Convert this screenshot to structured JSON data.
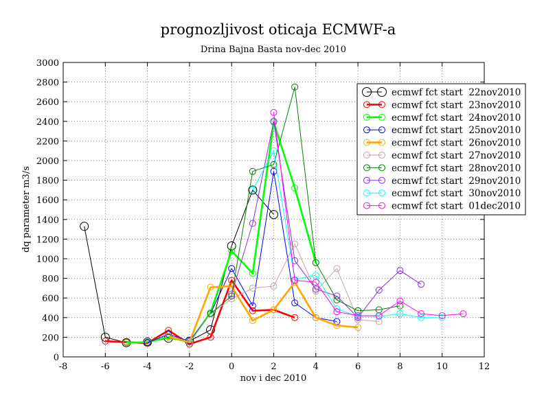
{
  "chart_data": {
    "type": "line",
    "title": "prognozljivost oticaja ECMWF-a",
    "subtitle": "Drina Bajna Basta nov-dec 2010",
    "xlabel": "nov i dec 2010",
    "ylabel": "dq parameter m3/s",
    "xlim": [
      -8,
      12
    ],
    "ylim": [
      0,
      3000
    ],
    "xticks": [
      -8,
      -6,
      -4,
      -2,
      0,
      2,
      4,
      6,
      8,
      10,
      12
    ],
    "yticks": [
      0,
      200,
      400,
      600,
      800,
      1000,
      1200,
      1400,
      1600,
      1800,
      2000,
      2200,
      2400,
      2600,
      2800,
      3000
    ],
    "grid": true,
    "legend_position": "top-right",
    "series": [
      {
        "name": "ecmwf fct start  22nov2010",
        "color": "#000000",
        "thick": false,
        "big_markers": true,
        "x": [
          -7,
          -6,
          -5,
          -4,
          -3,
          -2,
          -1,
          0,
          1,
          2
        ],
        "y": [
          1330,
          200,
          145,
          150,
          190,
          160,
          275,
          1130,
          1700,
          1450
        ]
      },
      {
        "name": "ecmwf fct start  23nov2010",
        "color": "#ff0000",
        "thick": true,
        "big_markers": false,
        "x": [
          -6,
          -5,
          -4,
          -3,
          -2,
          -1,
          0,
          1,
          2,
          3
        ],
        "y": [
          160,
          150,
          140,
          270,
          130,
          200,
          780,
          470,
          480,
          400
        ]
      },
      {
        "name": "ecmwf fct start  24nov2010",
        "color": "#00ff00",
        "thick": true,
        "big_markers": false,
        "x": [
          -5,
          -4,
          -3,
          -2,
          -1,
          0,
          1,
          2,
          3,
          4
        ],
        "y": [
          145,
          150,
          200,
          150,
          450,
          1080,
          850,
          2390,
          1720,
          960
        ]
      },
      {
        "name": "ecmwf fct start  25nov2010",
        "color": "#0000ff",
        "thick": false,
        "big_markers": false,
        "x": [
          -4,
          -3,
          -2,
          -1,
          0,
          1,
          2,
          3,
          4,
          5
        ],
        "y": [
          145,
          230,
          160,
          440,
          900,
          520,
          1890,
          550,
          400,
          360
        ]
      },
      {
        "name": "ecmwf fct start  26nov2010",
        "color": "#ffa500",
        "thick": true,
        "big_markers": false,
        "x": [
          -3,
          -2,
          -1,
          0,
          1,
          2,
          3,
          4,
          5,
          6
        ],
        "y": [
          210,
          150,
          710,
          720,
          370,
          480,
          760,
          400,
          320,
          300
        ]
      },
      {
        "name": "ecmwf fct start  27nov2010",
        "color": "#c8a0a0",
        "thick": false,
        "big_markers": false,
        "x": [
          -2,
          -1,
          0,
          1,
          2,
          3,
          4,
          5,
          6,
          7
        ],
        "y": [
          150,
          440,
          590,
          700,
          720,
          1150,
          670,
          900,
          380,
          360
        ]
      },
      {
        "name": "ecmwf fct start  28nov2010",
        "color": "#008000",
        "thick": false,
        "big_markers": false,
        "x": [
          -1,
          0,
          1,
          2,
          3,
          4,
          5,
          6,
          7,
          8
        ],
        "y": [
          440,
          620,
          1890,
          1960,
          2750,
          960,
          580,
          470,
          480,
          520
        ]
      },
      {
        "name": "ecmwf fct start  29nov2010",
        "color": "#8a2be2",
        "thick": false,
        "big_markers": false,
        "x": [
          0,
          1,
          2,
          3,
          4,
          5,
          6,
          7,
          8,
          9
        ],
        "y": [
          640,
          1360,
          2400,
          980,
          690,
          620,
          400,
          680,
          880,
          740
        ]
      },
      {
        "name": "ecmwf fct start  30nov2010",
        "color": "#00ffff",
        "thick": false,
        "big_markers": false,
        "x": [
          1,
          2,
          3,
          4,
          5,
          6,
          7,
          8,
          9,
          10
        ],
        "y": [
          1700,
          2100,
          790,
          830,
          490,
          410,
          410,
          440,
          400,
          400
        ]
      },
      {
        "name": "ecmwf fct start  01dec2010",
        "color": "#ff00ff",
        "thick": false,
        "big_markers": false,
        "x": [
          2,
          3,
          4,
          5,
          6,
          7,
          8,
          9,
          10,
          11
        ],
        "y": [
          2490,
          780,
          760,
          460,
          420,
          420,
          570,
          440,
          420,
          440
        ]
      }
    ]
  }
}
